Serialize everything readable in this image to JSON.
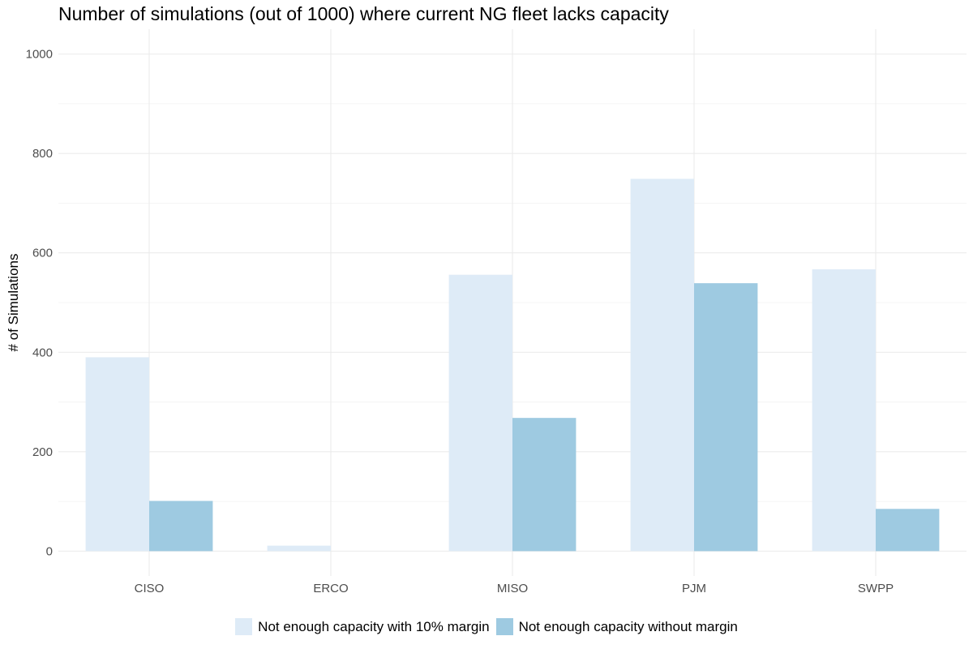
{
  "chart_data": {
    "type": "bar",
    "title": "Number of simulations (out of 1000) where current NG fleet lacks capacity",
    "xlabel": "",
    "ylabel": "# of Simulations",
    "categories": [
      "CISO",
      "ERCO",
      "MISO",
      "PJM",
      "SWPP"
    ],
    "series": [
      {
        "name": "Not enough capacity with 10% margin",
        "color": "#deebf7",
        "values": [
          390,
          11,
          556,
          749,
          567
        ]
      },
      {
        "name": "Not enough capacity without margin",
        "color": "#9ecae1",
        "values": [
          101,
          0,
          268,
          539,
          85
        ]
      }
    ],
    "ylim": [
      -50,
      1050
    ],
    "yticks": [
      0,
      200,
      400,
      600,
      800,
      1000
    ],
    "grid": true,
    "legend_position": "bottom"
  }
}
